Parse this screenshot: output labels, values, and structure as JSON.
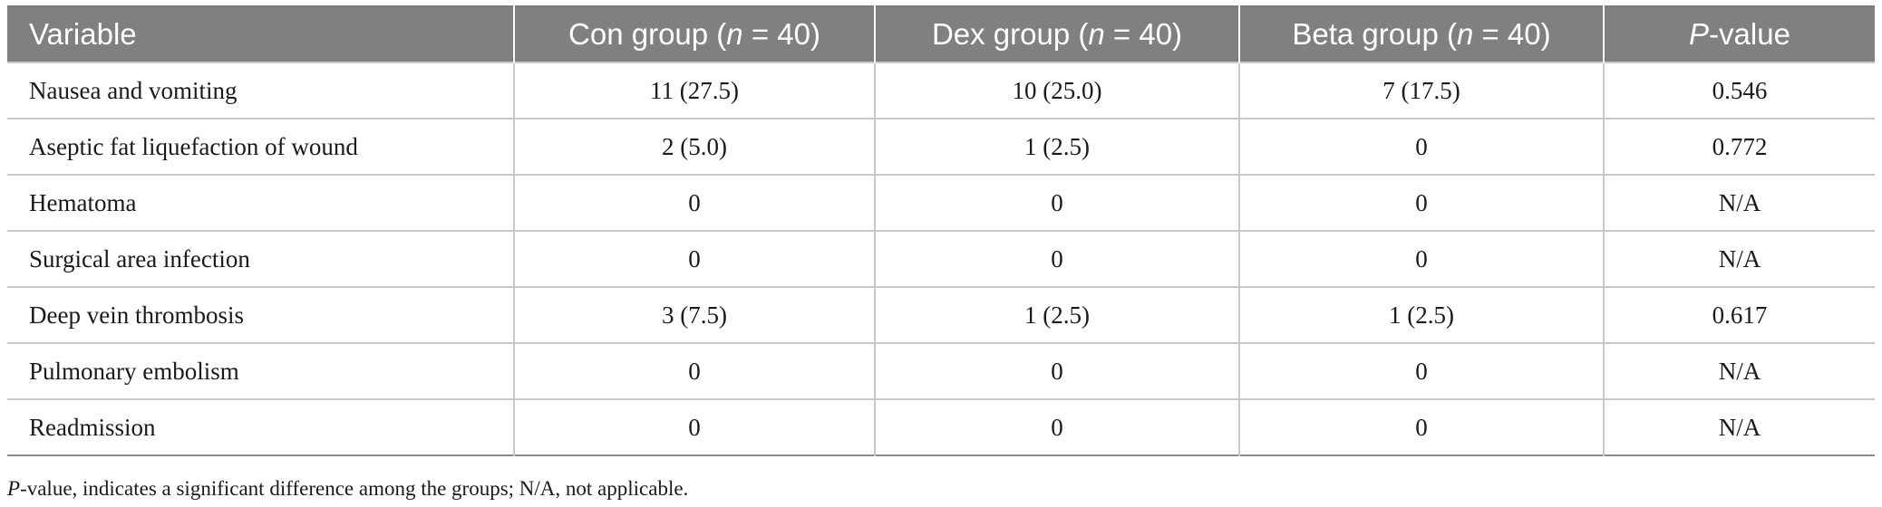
{
  "table": {
    "headers": [
      {
        "pre": "Variable",
        "ital": "",
        "post": ""
      },
      {
        "pre": "Con group (",
        "ital": "n",
        "post": " = 40)"
      },
      {
        "pre": "Dex group (",
        "ital": "n",
        "post": " = 40)"
      },
      {
        "pre": "Beta group (",
        "ital": "n",
        "post": " = 40)"
      },
      {
        "pre": "",
        "ital": "P",
        "post": "-value"
      }
    ],
    "rows": [
      [
        "Nausea and vomiting",
        "11 (27.5)",
        "10 (25.0)",
        "7 (17.5)",
        "0.546"
      ],
      [
        "Aseptic fat liquefaction of wound",
        "2 (5.0)",
        "1 (2.5)",
        "0",
        "0.772"
      ],
      [
        "Hematoma",
        "0",
        "0",
        "0",
        "N/A"
      ],
      [
        "Surgical area infection",
        "0",
        "0",
        "0",
        "N/A"
      ],
      [
        "Deep vein thrombosis",
        "3 (7.5)",
        "1 (2.5)",
        "1 (2.5)",
        "0.617"
      ],
      [
        "Pulmonary embolism",
        "0",
        "0",
        "0",
        "N/A"
      ],
      [
        "Readmission",
        "0",
        "0",
        "0",
        "N/A"
      ]
    ]
  },
  "footnote": {
    "ital": "P",
    "text": "-value, indicates a significant difference among the groups; N/A, not applicable."
  }
}
